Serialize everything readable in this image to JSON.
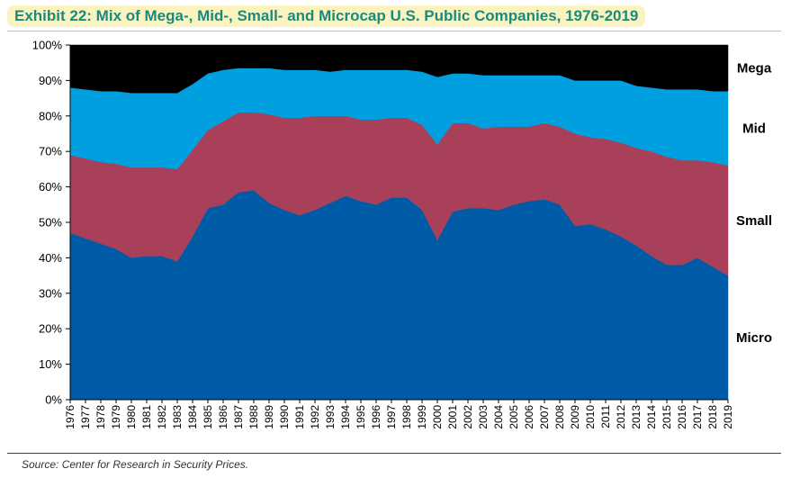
{
  "header": {
    "title": "Exhibit 22: Mix of Mega-, Mid-, Small- and Microcap U.S. Public Companies, 1976-2019"
  },
  "footer": {
    "source": "Source: Center for Research in Security Prices."
  },
  "chart_data": {
    "type": "area",
    "stacked": true,
    "title": "Exhibit 22: Mix of Mega-, Mid-, Small- and Microcap U.S. Public Companies, 1976-2019",
    "xlabel": "",
    "ylabel": "",
    "ylim": [
      0,
      100
    ],
    "ytick_labels": [
      "0%",
      "10%",
      "20%",
      "30%",
      "40%",
      "50%",
      "60%",
      "70%",
      "80%",
      "90%",
      "100%"
    ],
    "categories": [
      "1976",
      "1977",
      "1978",
      "1979",
      "1980",
      "1981",
      "1982",
      "1983",
      "1984",
      "1985",
      "1986",
      "1987",
      "1988",
      "1989",
      "1990",
      "1991",
      "1992",
      "1993",
      "1994",
      "1995",
      "1996",
      "1997",
      "1998",
      "1999",
      "2000",
      "2001",
      "2002",
      "2003",
      "2004",
      "2005",
      "2006",
      "2007",
      "2008",
      "2009",
      "2010",
      "2011",
      "2012",
      "2013",
      "2014",
      "2015",
      "2016",
      "2017",
      "2018",
      "2019"
    ],
    "grid": false,
    "legend": "right, labels beside bands",
    "series": [
      {
        "name": "Micro",
        "color": "#005ba6",
        "values": [
          47,
          45.5,
          44,
          42.5,
          40,
          40.5,
          40.5,
          39,
          46,
          54,
          55,
          58.5,
          59,
          55.5,
          53.5,
          52,
          53.5,
          55.5,
          57.5,
          56,
          55,
          57,
          57,
          53.5,
          45,
          53,
          54,
          54,
          53.5,
          55,
          56,
          56.5,
          55,
          49,
          49.5,
          48,
          46,
          43.5,
          40.5,
          38,
          38,
          40,
          37.5,
          35
        ]
      },
      {
        "name": "Small",
        "color": "#a8405a",
        "values": [
          22,
          22.5,
          23,
          24,
          25.5,
          25,
          25,
          26,
          24.5,
          22,
          23.5,
          22.5,
          22,
          25,
          26,
          27.5,
          26.5,
          24.5,
          22.5,
          23,
          24,
          22.5,
          22.5,
          24,
          27,
          25,
          24,
          22.5,
          23.5,
          22,
          21,
          21.5,
          22,
          26,
          24.5,
          25.5,
          26.5,
          27.5,
          29.5,
          30.5,
          29.5,
          27.5,
          29.5,
          31
        ]
      },
      {
        "name": "Mid",
        "color": "#00a0e0",
        "values": [
          19,
          19.5,
          20,
          20.5,
          21,
          21,
          21,
          21.5,
          18.5,
          16,
          14.5,
          12.5,
          12.5,
          13,
          13.5,
          13.5,
          13,
          12.5,
          13,
          14,
          14,
          13.5,
          13.5,
          15,
          19,
          14,
          14,
          15,
          14.5,
          14.5,
          14.5,
          13.5,
          14.5,
          15,
          16,
          16.5,
          17.5,
          17.5,
          18,
          19,
          20,
          20,
          20,
          21
        ]
      },
      {
        "name": "Mega",
        "color": "#000000",
        "values": [
          12,
          12.5,
          13,
          13,
          13.5,
          13.5,
          13.5,
          13.5,
          11,
          8,
          7,
          6.5,
          6.5,
          6.5,
          7,
          7,
          7,
          7.5,
          7,
          7,
          7,
          7,
          7,
          7.5,
          9,
          8,
          8,
          8.5,
          8.5,
          8.5,
          8.5,
          8.5,
          8.5,
          10,
          10,
          10,
          10,
          11.5,
          12,
          12.5,
          12.5,
          12.5,
          13,
          13
        ]
      }
    ]
  }
}
